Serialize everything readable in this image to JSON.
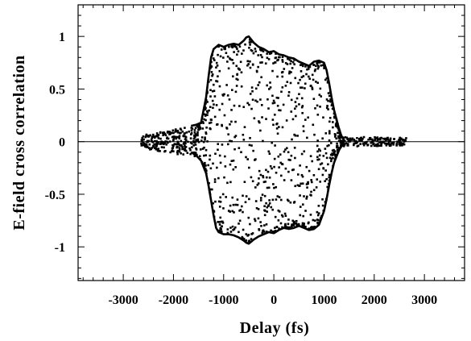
{
  "chart_data": {
    "type": "scatter",
    "title": "",
    "xlabel": "Delay (fs)",
    "ylabel": "E-field cross correlation",
    "xlim": [
      -3900,
      3800
    ],
    "ylim": [
      -1.32,
      1.3
    ],
    "x_ticks": [
      -3000,
      -2000,
      -1000,
      0,
      1000,
      2000,
      3000
    ],
    "x_tick_labels": [
      "-3000",
      "-2000",
      "-1000",
      "0",
      "1000",
      "2000",
      "3000"
    ],
    "y_ticks": [
      -1,
      -0.5,
      0,
      0.5,
      1
    ],
    "y_tick_labels": [
      "-1",
      "-0.5",
      "0",
      "0.5",
      "1"
    ],
    "grid": false,
    "zero_line": true,
    "series": [
      {
        "kind": "line",
        "role": "upper-envelope",
        "x": [
          -1650,
          -1550,
          -1450,
          -1350,
          -1300,
          -1250,
          -1200,
          -1100,
          -1000,
          -900,
          -800,
          -700,
          -600,
          -550,
          -500,
          -450,
          -400,
          -300,
          -200,
          -100,
          0,
          100,
          200,
          300,
          400,
          500,
          600,
          700,
          800,
          900,
          1000,
          1050,
          1100,
          1150,
          1200,
          1300,
          1350,
          1400
        ],
        "y": [
          0.15,
          0.16,
          0.18,
          0.42,
          0.62,
          0.8,
          0.88,
          0.92,
          0.9,
          0.92,
          0.93,
          0.92,
          0.96,
          0.99,
          1.0,
          0.97,
          0.94,
          0.9,
          0.88,
          0.85,
          0.86,
          0.83,
          0.82,
          0.8,
          0.79,
          0.76,
          0.74,
          0.72,
          0.76,
          0.77,
          0.75,
          0.68,
          0.56,
          0.42,
          0.3,
          0.12,
          0.05,
          0.03
        ]
      },
      {
        "kind": "line",
        "role": "lower-envelope",
        "x": [
          -1650,
          -1550,
          -1450,
          -1350,
          -1300,
          -1250,
          -1200,
          -1150,
          -1100,
          -1000,
          -900,
          -800,
          -700,
          -600,
          -550,
          -500,
          -450,
          -400,
          -300,
          -200,
          -100,
          0,
          100,
          200,
          300,
          400,
          500,
          600,
          700,
          800,
          900,
          1000,
          1050,
          1100,
          1150,
          1200,
          1300,
          1350,
          1400
        ],
        "y": [
          -0.1,
          -0.13,
          -0.18,
          -0.3,
          -0.42,
          -0.56,
          -0.7,
          -0.82,
          -0.86,
          -0.88,
          -0.88,
          -0.89,
          -0.91,
          -0.94,
          -0.96,
          -0.97,
          -0.95,
          -0.93,
          -0.9,
          -0.88,
          -0.86,
          -0.87,
          -0.84,
          -0.82,
          -0.83,
          -0.82,
          -0.8,
          -0.82,
          -0.84,
          -0.83,
          -0.79,
          -0.66,
          -0.55,
          -0.42,
          -0.3,
          -0.2,
          -0.08,
          -0.04,
          -0.03
        ]
      }
    ]
  }
}
